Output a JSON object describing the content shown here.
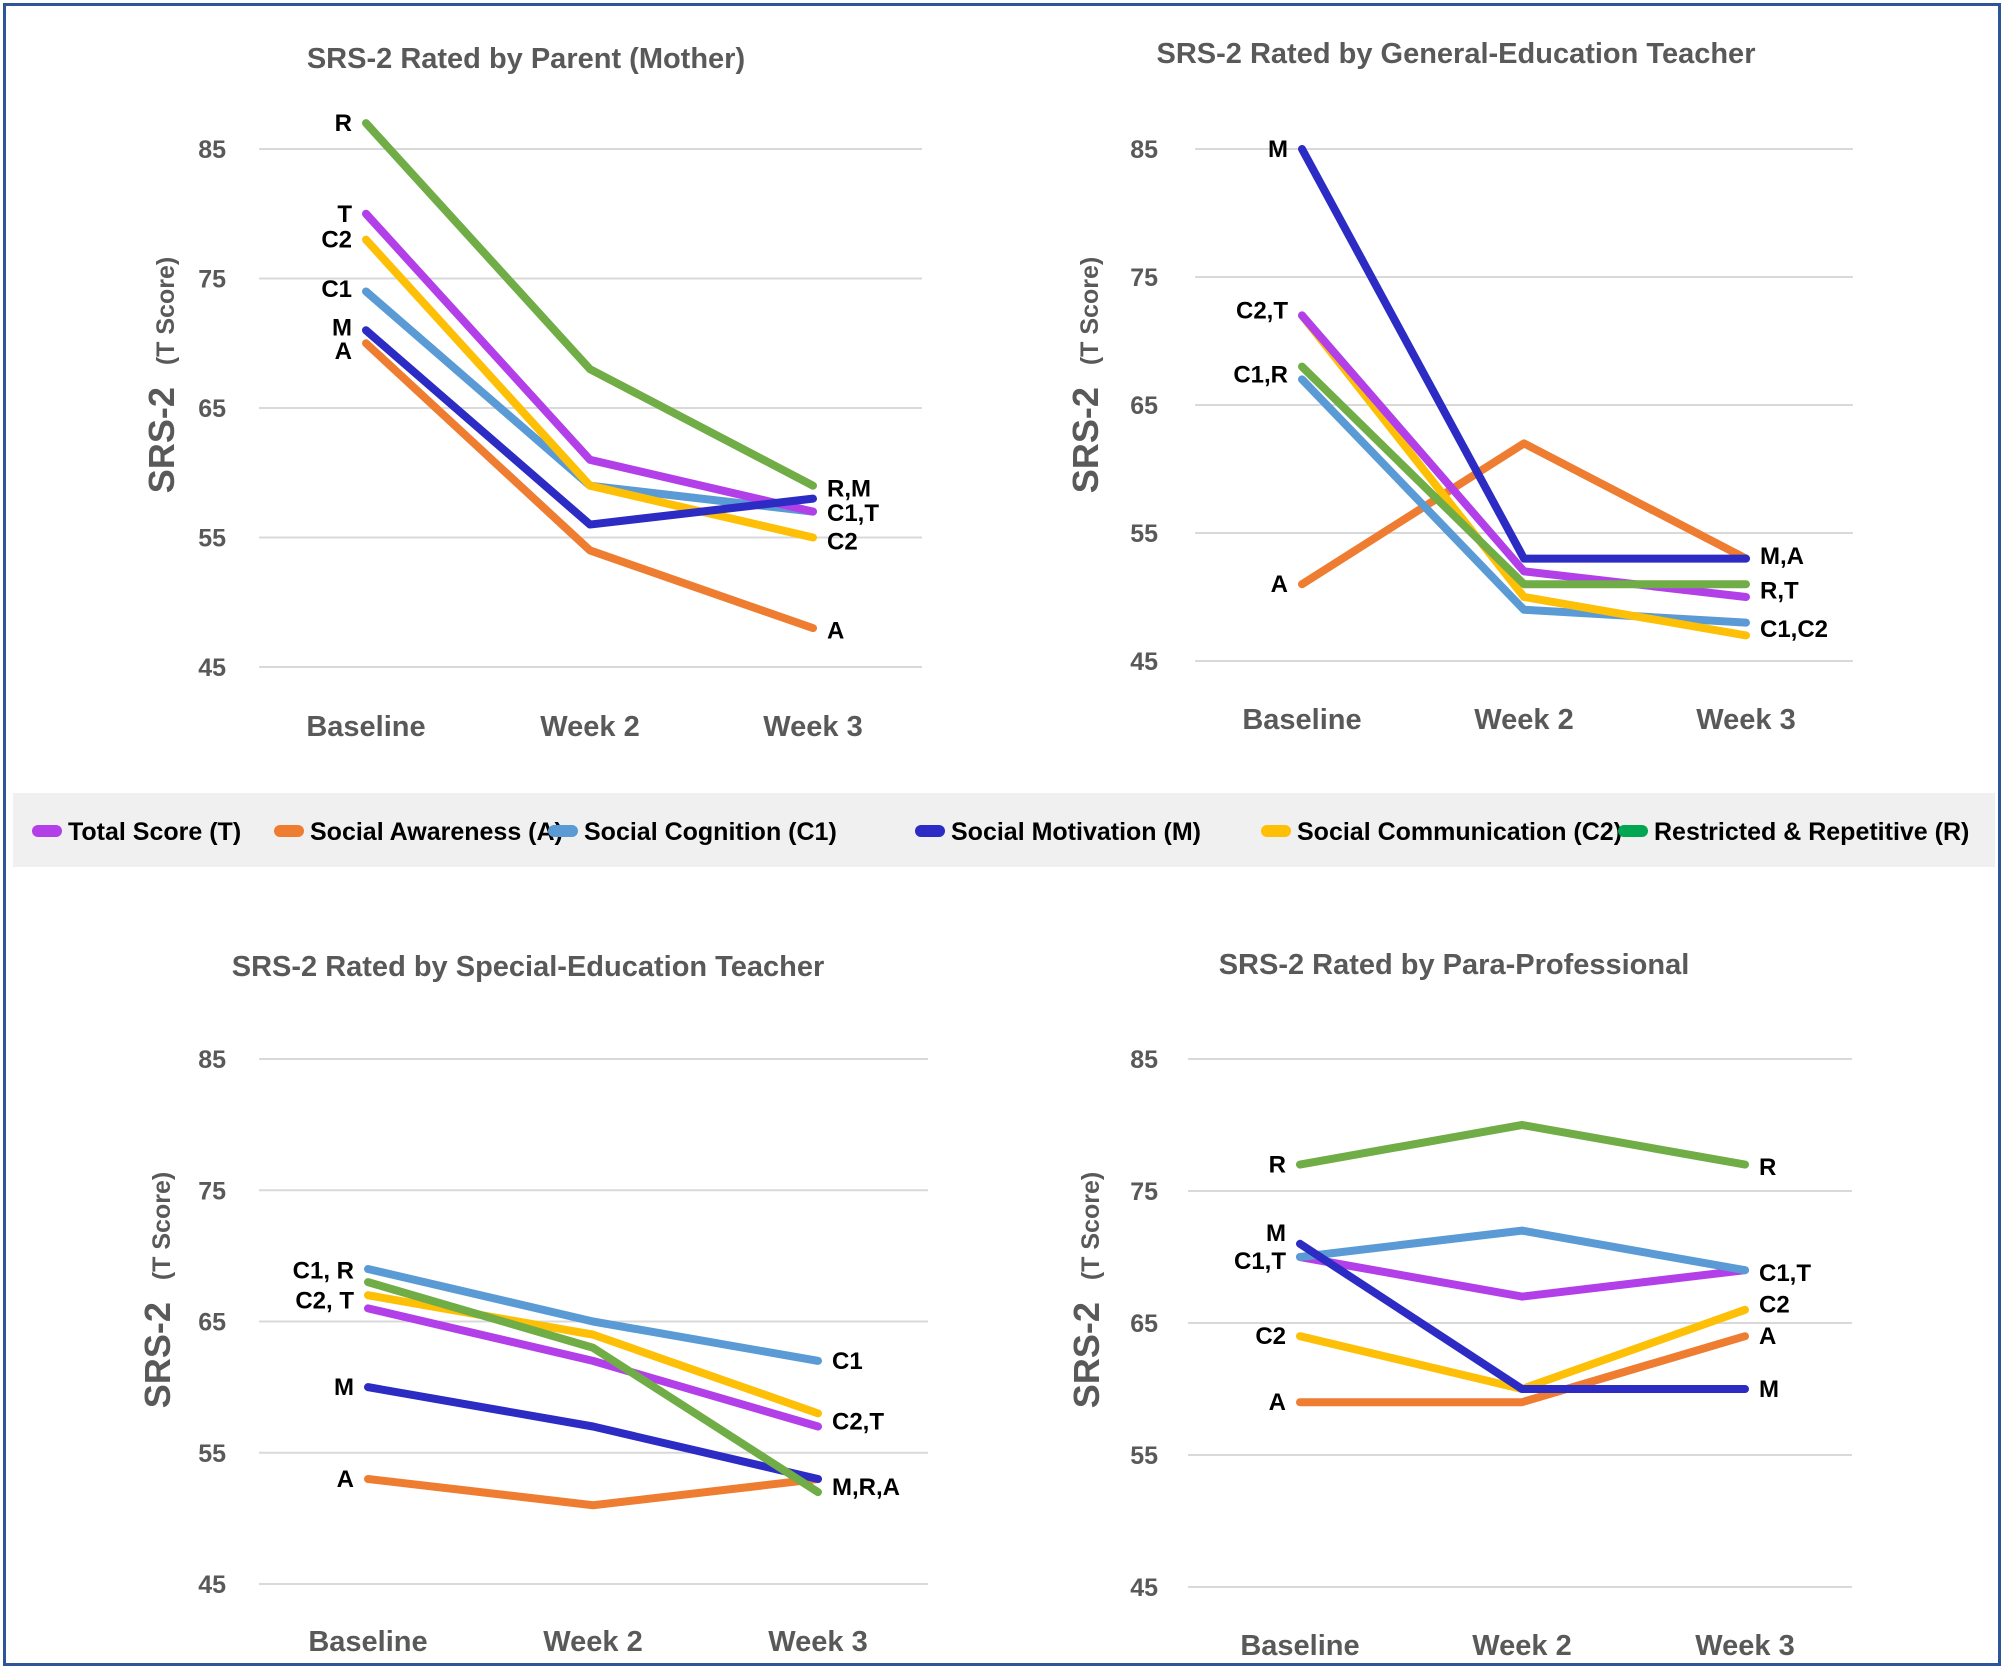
{
  "colors": {
    "T": "#b23fe8",
    "A": "#ee7d31",
    "C1": "#5b9bd5",
    "M": "#2c2bc3",
    "C2": "#fec006",
    "R": "#70ad47",
    "R_legend": "#00a651"
  },
  "legend": [
    {
      "key": "T",
      "label": "Total Score (T)"
    },
    {
      "key": "A",
      "label": "Social Awareness (A)"
    },
    {
      "key": "C1",
      "label": "Social Cognition (C1)"
    },
    {
      "key": "M",
      "label": "Social Motivation (M)"
    },
    {
      "key": "C2",
      "label": "Social Communication (C2)"
    },
    {
      "key": "R",
      "label": "Restricted & Repetitive (R)"
    }
  ],
  "chart_data": [
    {
      "type": "line",
      "title": "SRS-2 Rated by Parent (Mother)",
      "ylabel_main": "SRS-2",
      "ylabel_sub": "(T Score)",
      "categories": [
        "Baseline",
        "Week 2",
        "Week 3"
      ],
      "yticks": [
        45,
        55,
        65,
        75,
        85
      ],
      "ylim": [
        45,
        85
      ],
      "series": [
        {
          "key": "A",
          "values": [
            70,
            54,
            48
          ]
        },
        {
          "key": "C1",
          "values": [
            74,
            59,
            57
          ]
        },
        {
          "key": "C2",
          "values": [
            78,
            59,
            55
          ]
        },
        {
          "key": "T",
          "values": [
            80,
            61,
            57
          ]
        },
        {
          "key": "M",
          "values": [
            71,
            56,
            58
          ]
        },
        {
          "key": "R",
          "values": [
            87,
            68,
            59
          ]
        }
      ],
      "labels": [
        {
          "text": "R",
          "cat": 0,
          "value": 87,
          "side": "left"
        },
        {
          "text": "T",
          "cat": 0,
          "value": 80,
          "side": "left"
        },
        {
          "text": "C2",
          "cat": 0,
          "value": 78,
          "side": "left"
        },
        {
          "text": "C1",
          "cat": 0,
          "value": 74.2,
          "side": "left"
        },
        {
          "text": "M",
          "cat": 0,
          "value": 71.2,
          "side": "left"
        },
        {
          "text": "A",
          "cat": 0,
          "value": 69.4,
          "side": "left"
        },
        {
          "text": "R,M",
          "cat": 2,
          "value": 58.8,
          "side": "right"
        },
        {
          "text": "C1,T",
          "cat": 2,
          "value": 56.9,
          "side": "right"
        },
        {
          "text": "C2",
          "cat": 2,
          "value": 54.7,
          "side": "right"
        },
        {
          "text": "A",
          "cat": 2,
          "value": 47.8,
          "side": "right"
        }
      ]
    },
    {
      "type": "line",
      "title": "SRS-2 Rated by General-Education Teacher",
      "ylabel_main": "SRS-2",
      "ylabel_sub": "(T Score)",
      "categories": [
        "Baseline",
        "Week 2",
        "Week 3"
      ],
      "yticks": [
        45,
        55,
        65,
        75,
        85
      ],
      "ylim": [
        45,
        85
      ],
      "series": [
        {
          "key": "A",
          "values": [
            51,
            62,
            53
          ]
        },
        {
          "key": "C1",
          "values": [
            67,
            49,
            48
          ]
        },
        {
          "key": "C2",
          "values": [
            72,
            50,
            47
          ]
        },
        {
          "key": "T",
          "values": [
            72,
            52,
            50
          ]
        },
        {
          "key": "R",
          "values": [
            68,
            51,
            51
          ]
        },
        {
          "key": "M",
          "values": [
            85,
            53,
            53
          ]
        }
      ],
      "labels": [
        {
          "text": "M",
          "cat": 0,
          "value": 85,
          "side": "left"
        },
        {
          "text": "C2,T",
          "cat": 0,
          "value": 72.4,
          "side": "left"
        },
        {
          "text": "C1,R",
          "cat": 0,
          "value": 67.4,
          "side": "left"
        },
        {
          "text": "A",
          "cat": 0,
          "value": 51,
          "side": "left"
        },
        {
          "text": "M,A",
          "cat": 2,
          "value": 53.2,
          "side": "right"
        },
        {
          "text": "R,T",
          "cat": 2,
          "value": 50.5,
          "side": "right"
        },
        {
          "text": "C1,C2",
          "cat": 2,
          "value": 47.5,
          "side": "right"
        }
      ]
    },
    {
      "type": "line",
      "title": "SRS-2 Rated by Special-Education Teacher",
      "ylabel_main": "SRS-2",
      "ylabel_sub": "(T Score)",
      "categories": [
        "Baseline",
        "Week 2",
        "Week 3"
      ],
      "yticks": [
        45,
        55,
        65,
        75,
        85
      ],
      "ylim": [
        45,
        85
      ],
      "series": [
        {
          "key": "A",
          "values": [
            53,
            51,
            53
          ]
        },
        {
          "key": "M",
          "values": [
            60,
            57,
            53
          ]
        },
        {
          "key": "T",
          "values": [
            66,
            62,
            57
          ]
        },
        {
          "key": "C2",
          "values": [
            67,
            64,
            58
          ]
        },
        {
          "key": "C1",
          "values": [
            69,
            65,
            62
          ]
        },
        {
          "key": "R",
          "values": [
            68,
            63,
            52
          ]
        }
      ],
      "labels": [
        {
          "text": "C1, R",
          "cat": 0,
          "value": 68.9,
          "side": "left"
        },
        {
          "text": "C2, T",
          "cat": 0,
          "value": 66.6,
          "side": "left"
        },
        {
          "text": "M",
          "cat": 0,
          "value": 60,
          "side": "left"
        },
        {
          "text": "A",
          "cat": 0,
          "value": 53,
          "side": "left"
        },
        {
          "text": "C1",
          "cat": 2,
          "value": 62,
          "side": "right"
        },
        {
          "text": "C2,T",
          "cat": 2,
          "value": 57.4,
          "side": "right"
        },
        {
          "text": "M,R,A",
          "cat": 2,
          "value": 52.4,
          "side": "right"
        }
      ]
    },
    {
      "type": "line",
      "title": "SRS-2 Rated by Para-Professional",
      "ylabel_main": "SRS-2",
      "ylabel_sub": "(T Score)",
      "categories": [
        "Baseline",
        "Week 2",
        "Week 3"
      ],
      "yticks": [
        45,
        55,
        65,
        75,
        85
      ],
      "ylim": [
        45,
        85
      ],
      "series": [
        {
          "key": "A",
          "values": [
            59,
            59,
            64
          ]
        },
        {
          "key": "C2",
          "values": [
            64,
            60,
            66
          ]
        },
        {
          "key": "T",
          "values": [
            70,
            67,
            69
          ]
        },
        {
          "key": "C1",
          "values": [
            70,
            72,
            69
          ]
        },
        {
          "key": "M",
          "values": [
            71,
            60,
            60
          ]
        },
        {
          "key": "R",
          "values": [
            77,
            80,
            77
          ]
        }
      ],
      "labels": [
        {
          "text": "R",
          "cat": 0,
          "value": 77,
          "side": "left"
        },
        {
          "text": "M",
          "cat": 0,
          "value": 71.8,
          "side": "left"
        },
        {
          "text": "C1,T",
          "cat": 0,
          "value": 69.7,
          "side": "left"
        },
        {
          "text": "C2",
          "cat": 0,
          "value": 64,
          "side": "left"
        },
        {
          "text": "A",
          "cat": 0,
          "value": 59,
          "side": "left"
        },
        {
          "text": "R",
          "cat": 2,
          "value": 76.8,
          "side": "right"
        },
        {
          "text": "C1,T",
          "cat": 2,
          "value": 68.8,
          "side": "right"
        },
        {
          "text": "C2",
          "cat": 2,
          "value": 66.4,
          "side": "right"
        },
        {
          "text": "A",
          "cat": 2,
          "value": 64,
          "side": "right"
        },
        {
          "text": "M",
          "cat": 2,
          "value": 60,
          "side": "right"
        }
      ]
    }
  ]
}
